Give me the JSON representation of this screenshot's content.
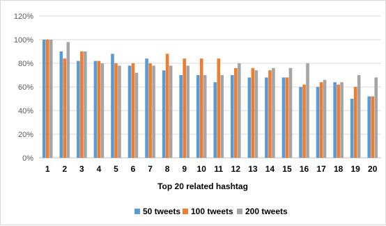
{
  "chart_data": {
    "type": "bar",
    "xlabel": "Top 20 related hashtag",
    "ylabel": "",
    "ylim": [
      0,
      120
    ],
    "yticks": [
      0,
      20,
      40,
      60,
      80,
      100,
      120
    ],
    "ytick_labels": [
      "0%",
      "20%",
      "40%",
      "60%",
      "80%",
      "100%",
      "120%"
    ],
    "grid": true,
    "legend_position": "bottom",
    "categories": [
      "1",
      "2",
      "3",
      "4",
      "5",
      "6",
      "7",
      "8",
      "9",
      "10",
      "11",
      "12",
      "13",
      "14",
      "15",
      "16",
      "17",
      "18",
      "19",
      "20"
    ],
    "series": [
      {
        "name": "50 tweets",
        "color": "#5b9bd5",
        "values": [
          100,
          90,
          82,
          82,
          88,
          78,
          84,
          74,
          70,
          70,
          64,
          70,
          68,
          68,
          68,
          60,
          60,
          64,
          50,
          52
        ]
      },
      {
        "name": "100 tweets",
        "color": "#ed7d31",
        "values": [
          100,
          84,
          90,
          82,
          80,
          80,
          80,
          88,
          84,
          84,
          84,
          76,
          76,
          74,
          68,
          62,
          64,
          62,
          60,
          52
        ]
      },
      {
        "name": "200 tweets",
        "color": "#a5a5a5",
        "values": [
          100,
          98,
          90,
          80,
          78,
          72,
          78,
          78,
          78,
          70,
          70,
          80,
          74,
          76,
          76,
          80,
          66,
          64,
          70,
          68
        ]
      }
    ]
  }
}
